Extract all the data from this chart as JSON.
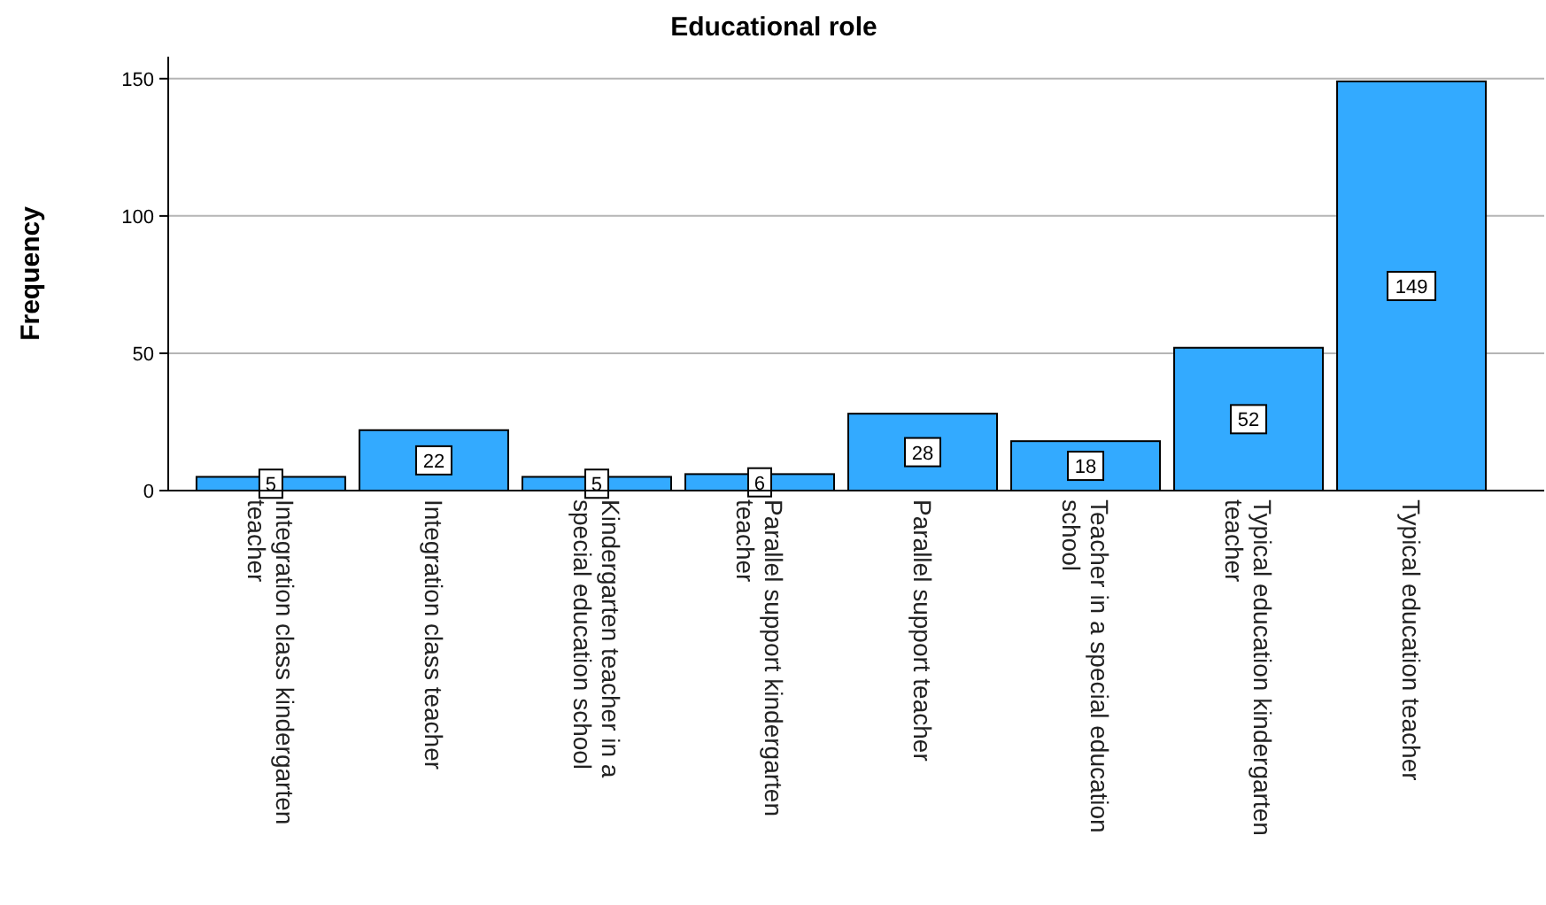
{
  "chart_data": {
    "type": "bar",
    "title": "Educational role",
    "ylabel": "Frequency",
    "categories": [
      "Integration class kindergarten teacher",
      "Integration class teacher",
      "Kindergarten teacher in a special education school",
      "Parallel support kindergarten teacher",
      "Parallel support teacher",
      "Teacher in a special education school",
      "Typical education kindergarten teacher",
      "Typical education teacher"
    ],
    "values": [
      5,
      22,
      5,
      6,
      28,
      18,
      52,
      149
    ],
    "color": "#33aaff",
    "ylim": [
      0,
      158
    ],
    "yticks": [
      0,
      50,
      100,
      150
    ],
    "grid": "y",
    "data_labels": true
  }
}
